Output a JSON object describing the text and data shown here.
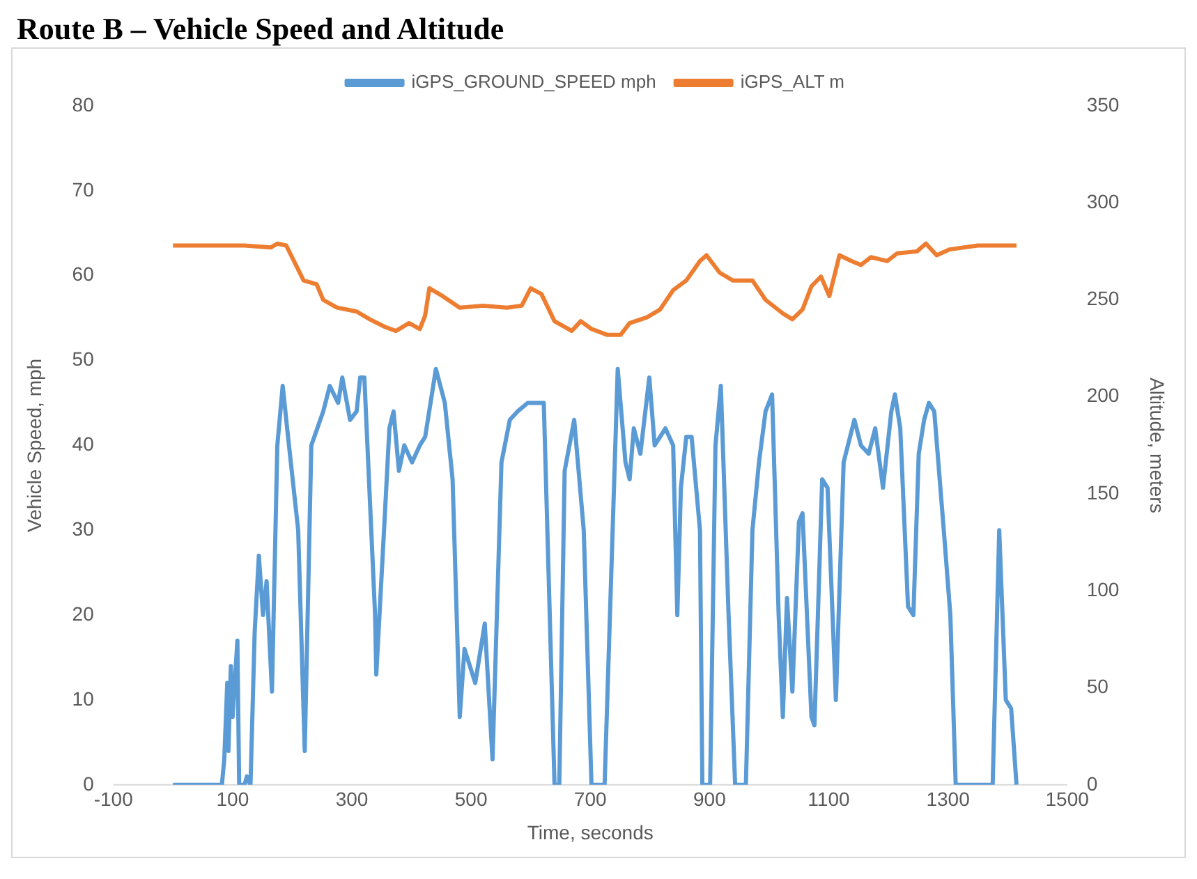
{
  "chart_data": {
    "type": "line",
    "title": "Route B – Vehicle Speed and Altitude",
    "xlabel": "Time, seconds",
    "ylabel": "Vehicle Speed, mph",
    "y2label": "Altitude, meters",
    "xlim": [
      -100,
      1500
    ],
    "xticks": [
      -100,
      100,
      300,
      500,
      700,
      900,
      1100,
      1300,
      1500
    ],
    "ylim": [
      0,
      80
    ],
    "yticks": [
      0,
      10,
      20,
      30,
      40,
      50,
      60,
      70,
      80
    ],
    "y2lim": [
      0,
      350
    ],
    "y2ticks": [
      0,
      50,
      100,
      150,
      200,
      250,
      300,
      350
    ],
    "grid": false,
    "legend": "top",
    "marker": "none",
    "series": [
      {
        "name": "iGPS_GROUND_SPEED mph",
        "color": "#5b9bd5",
        "x": [
          0,
          82,
          86,
          91,
          93,
          97,
          100,
          108,
          111,
          120,
          124,
          130,
          137,
          144,
          151,
          157,
          166,
          175,
          184,
          193,
          210,
          221,
          232,
          252,
          263,
          277,
          284,
          297,
          308,
          314,
          321,
          339,
          341,
          354,
          363,
          370,
          379,
          388,
          401,
          414,
          423,
          441,
          456,
          469,
          481,
          489,
          507,
          523,
          536,
          551,
          565,
          578,
          595,
          622,
          640,
          648,
          657,
          673,
          689,
          702,
          724,
          742,
          746,
          759,
          766,
          773,
          784,
          799,
          808,
          826,
          839,
          846,
          852,
          861,
          870,
          884,
          888,
          901,
          910,
          919,
          932,
          943,
          961,
          972,
          983,
          994,
          1005,
          1016,
          1023,
          1030,
          1039,
          1050,
          1056,
          1071,
          1076,
          1089,
          1098,
          1112,
          1125,
          1143,
          1154,
          1167,
          1178,
          1191,
          1205,
          1211,
          1220,
          1233,
          1242,
          1251,
          1260,
          1268,
          1277,
          1293,
          1304,
          1313,
          1375,
          1386,
          1397,
          1406,
          1415
        ],
        "values": [
          0,
          0,
          3,
          12,
          4,
          14,
          8,
          17,
          0,
          0,
          1,
          0,
          18,
          27,
          20,
          24,
          11,
          40,
          47,
          41,
          30,
          4,
          40,
          44,
          47,
          45,
          48,
          43,
          44,
          48,
          48,
          20,
          13,
          30,
          42,
          44,
          37,
          40,
          38,
          40,
          41,
          49,
          45,
          36,
          8,
          16,
          12,
          19,
          3,
          38,
          43,
          44,
          45,
          45,
          0,
          0,
          37,
          43,
          30,
          0,
          0,
          40,
          49,
          38,
          36,
          42,
          39,
          48,
          40,
          42,
          40,
          20,
          35,
          41,
          41,
          30,
          0,
          0,
          40,
          47,
          20,
          0,
          0,
          30,
          38,
          44,
          46,
          20,
          8,
          22,
          11,
          31,
          32,
          8,
          7,
          36,
          35,
          10,
          38,
          43,
          40,
          39,
          42,
          35,
          44,
          46,
          42,
          21,
          20,
          39,
          43,
          45,
          44,
          30,
          20,
          0,
          0,
          30,
          10,
          9,
          0
        ]
      },
      {
        "name": "iGPS_ALT m",
        "color": "#ed7d31",
        "axis": "y2",
        "x": [
          0,
          120,
          164,
          175,
          190,
          219,
          241,
          252,
          275,
          308,
          330,
          356,
          374,
          396,
          414,
          423,
          430,
          452,
          481,
          520,
          560,
          585,
          600,
          618,
          640,
          669,
          684,
          702,
          728,
          751,
          766,
          795,
          817,
          839,
          861,
          884,
          895,
          917,
          939,
          972,
          994,
          1023,
          1039,
          1056,
          1071,
          1087,
          1101,
          1118,
          1138,
          1154,
          1171,
          1198,
          1215,
          1248,
          1263,
          1281,
          1303,
          1350,
          1415
        ],
        "values": [
          278,
          278,
          277,
          279,
          278,
          260,
          258,
          250,
          246,
          244,
          240,
          236,
          234,
          238,
          235,
          242,
          256,
          252,
          246,
          247,
          246,
          247,
          256,
          253,
          239,
          234,
          239,
          235,
          232,
          232,
          238,
          241,
          245,
          255,
          260,
          270,
          273,
          264,
          260,
          260,
          250,
          243,
          240,
          245,
          257,
          262,
          252,
          273,
          270,
          268,
          272,
          270,
          274,
          275,
          279,
          273,
          276,
          278,
          278
        ]
      }
    ]
  }
}
